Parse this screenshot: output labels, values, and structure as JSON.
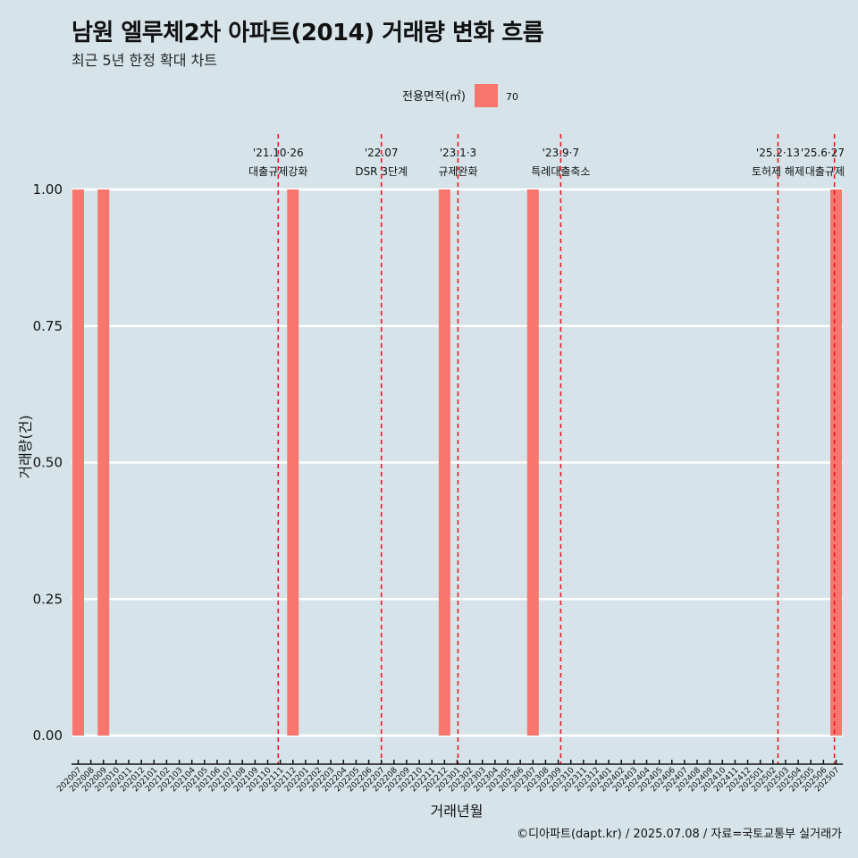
{
  "title": "남원 엘루체2차 아파트(2014) 거래량 변화 흐름",
  "subtitle": "최근 5년 한정 확대 차트",
  "caption": "©디아파트(dapt.kr) / 2025.07.08 / 자료=국토교통부 실거래가",
  "colors": {
    "background": "#d6e4ea",
    "bar": "#f8766d",
    "event_line": "#e8101a",
    "grid": "#ffffff"
  },
  "chart_data": {
    "type": "bar",
    "xlabel": "거래년월",
    "ylabel": "거래량(건)",
    "ylim": [
      0,
      1
    ],
    "y_ticks": [
      "0.00",
      "0.25",
      "0.50",
      "0.75",
      "1.00"
    ],
    "grid": true,
    "legend": {
      "title": "전용면적(㎡)",
      "placement": "top",
      "entries": [
        "70"
      ]
    },
    "categories": [
      "202007",
      "202008",
      "202009",
      "202010",
      "202011",
      "202012",
      "202101",
      "202102",
      "202103",
      "202104",
      "202105",
      "202106",
      "202107",
      "202108",
      "202109",
      "202110",
      "202111",
      "202112",
      "202201",
      "202202",
      "202203",
      "202204",
      "202205",
      "202206",
      "202207",
      "202208",
      "202209",
      "202210",
      "202211",
      "202212",
      "202301",
      "202302",
      "202303",
      "202304",
      "202305",
      "202306",
      "202307",
      "202308",
      "202309",
      "202310",
      "202311",
      "202312",
      "202401",
      "202402",
      "202403",
      "202404",
      "202405",
      "202406",
      "202407",
      "202408",
      "202409",
      "202410",
      "202411",
      "202412",
      "202501",
      "202502",
      "202503",
      "202504",
      "202505",
      "202506",
      "202507"
    ],
    "series": [
      {
        "name": "70",
        "values": [
          1,
          0,
          1,
          0,
          0,
          0,
          0,
          0,
          0,
          0,
          0,
          0,
          0,
          0,
          0,
          0,
          0,
          1,
          0,
          0,
          0,
          0,
          0,
          0,
          0,
          0,
          0,
          0,
          0,
          1,
          0,
          0,
          0,
          0,
          0,
          0,
          1,
          0,
          0,
          0,
          0,
          0,
          0,
          0,
          0,
          0,
          0,
          0,
          0,
          0,
          0,
          0,
          0,
          0,
          0,
          0,
          0,
          0,
          0,
          0,
          1
        ]
      }
    ],
    "events": [
      {
        "date": "2021-10-26",
        "label1": "'21.10·26",
        "label2": "대출규제강화"
      },
      {
        "date": "2022-07-01",
        "label1": "'22.07",
        "label2": "DSR 3단계"
      },
      {
        "date": "2023-01-03",
        "label1": "'23.1·3",
        "label2": "규제완화"
      },
      {
        "date": "2023-09-07",
        "label1": "'23.9·7",
        "label2": "특례대출축소"
      },
      {
        "date": "2025-02-13",
        "label1": "'25.2·13",
        "label2": "토허제 해제"
      },
      {
        "date": "2025-06-27",
        "label1": "'25.6·27",
        "label2": "대출규제"
      }
    ]
  }
}
